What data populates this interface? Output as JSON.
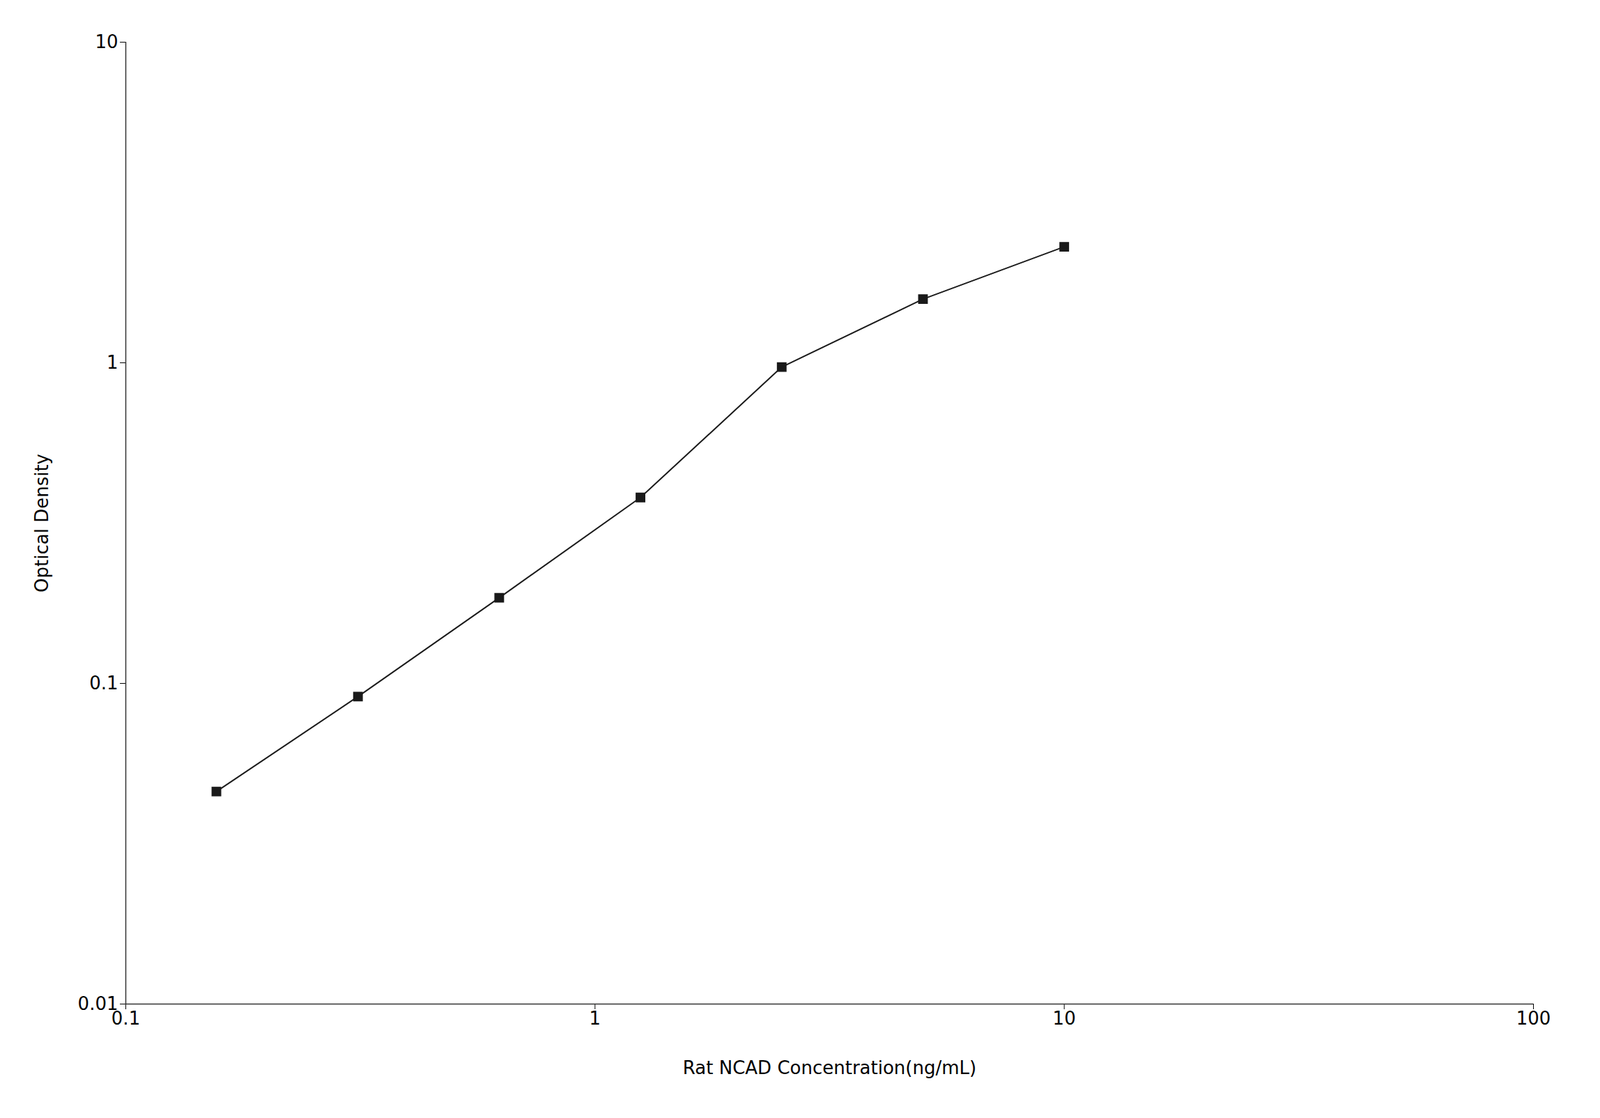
{
  "chart_data": {
    "type": "line",
    "x": [
      0.156,
      0.3125,
      0.625,
      1.25,
      2.5,
      5.0,
      10.0
    ],
    "values": [
      0.046,
      0.091,
      0.185,
      0.38,
      0.97,
      1.58,
      2.3
    ],
    "xlabel": "Rat NCAD Concentration(ng/mL)",
    "ylabel": "Optical Density",
    "xlim": [
      0.1,
      100
    ],
    "ylim": [
      0.01,
      10
    ],
    "xticks": [
      0.1,
      1,
      10,
      100
    ],
    "yticks": [
      0.01,
      0.1,
      1,
      10
    ],
    "log": true,
    "grid": false,
    "color": "#1a1a1a",
    "marker": "square"
  }
}
